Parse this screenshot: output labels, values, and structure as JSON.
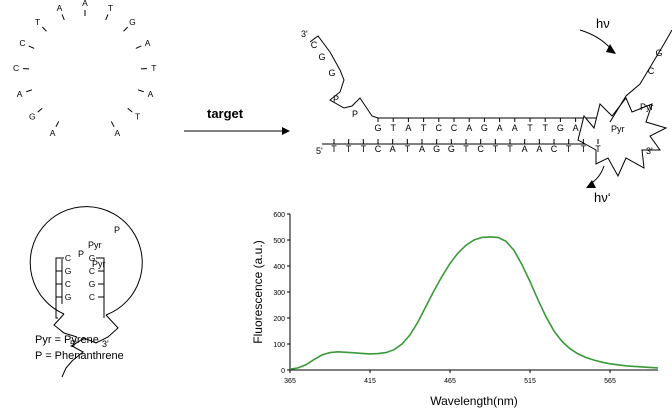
{
  "hairpin": {
    "loop_letters": [
      "A",
      "G",
      "A",
      "C",
      "C",
      "T",
      "A",
      "A",
      "T",
      "G",
      "A",
      "T",
      "A",
      "T",
      "A"
    ],
    "pyr_top": "Pyr",
    "p_mid": "P",
    "pyr_bottom": "Pyr",
    "p_top_right": "P",
    "stem_left": [
      "C",
      "G",
      "C",
      "G"
    ],
    "stem_right": [
      "G",
      "C",
      "G",
      "C"
    ],
    "end_left": "5'",
    "end_right": "3'"
  },
  "legend": {
    "pyr_def": "Pyr = Pyrene",
    "p_def": "P = Phenanthrene"
  },
  "arrow": {
    "label": "target"
  },
  "duplex": {
    "top_strand": [
      "G",
      "T",
      "A",
      "T",
      "C",
      "C",
      "A",
      "G",
      "A",
      "A",
      "T",
      "T",
      "G",
      "A"
    ],
    "bottom_strand": [
      "T",
      "T",
      "T",
      "C",
      "A",
      "T",
      "A",
      "G",
      "G",
      "T",
      "C",
      "T",
      "T",
      "A",
      "A",
      "C",
      "T",
      "T",
      "T"
    ],
    "bottom_5p": "5'",
    "bottom_3p": "3'",
    "flap_end": "3'",
    "flap_letters": [
      "C",
      "G",
      "G"
    ],
    "p1": "P",
    "p2": "P",
    "pyr1": "Pyr",
    "pyr2": "Pyr",
    "right_flap_letters": [
      "C",
      "G"
    ],
    "hv_in": "hν",
    "hv_out": "hν‘"
  },
  "chart_data": {
    "type": "line",
    "xlabel": "Wavelength(nm)",
    "ylabel": "Fluorescence  (a.u.)",
    "xlim": [
      365,
      595
    ],
    "ylim": [
      0,
      600
    ],
    "xticks": [
      365,
      415,
      465,
      515,
      565
    ],
    "yticks": [
      0,
      100,
      200,
      300,
      400,
      500,
      600
    ],
    "color": "#3a9a3a",
    "x": [
      365,
      370,
      375,
      380,
      385,
      390,
      395,
      400,
      405,
      410,
      415,
      420,
      425,
      430,
      435,
      440,
      445,
      450,
      455,
      460,
      465,
      470,
      475,
      480,
      485,
      490,
      495,
      500,
      505,
      510,
      515,
      520,
      525,
      530,
      535,
      540,
      545,
      550,
      555,
      560,
      565,
      570,
      575,
      580,
      585,
      590,
      595
    ],
    "y": [
      3,
      8,
      20,
      40,
      58,
      67,
      70,
      68,
      66,
      64,
      62,
      63,
      67,
      78,
      100,
      135,
      185,
      245,
      305,
      360,
      410,
      450,
      480,
      500,
      510,
      512,
      510,
      495,
      460,
      405,
      340,
      270,
      205,
      150,
      110,
      82,
      62,
      48,
      38,
      30,
      24,
      20,
      16,
      14,
      12,
      10,
      8
    ]
  }
}
